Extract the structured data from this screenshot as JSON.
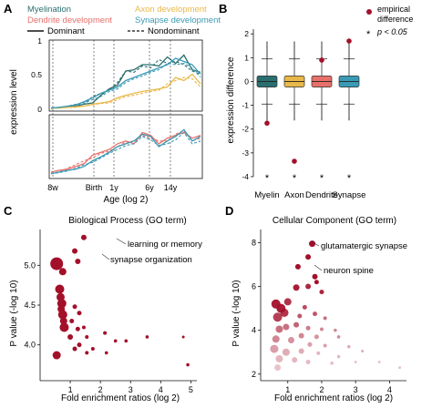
{
  "panels": {
    "A": {
      "label": "A",
      "legend": {
        "series": [
          {
            "name": "Myelination",
            "color": "#2a6f6f"
          },
          {
            "name": "Axon development",
            "color": "#e8b84a"
          },
          {
            "name": "Dendrite development",
            "color": "#e8706a"
          },
          {
            "name": "Synapse development",
            "color": "#3a9ab5"
          }
        ],
        "line_styles": [
          {
            "name": "Dominant",
            "dash": false
          },
          {
            "name": "Nondominant",
            "dash": true
          }
        ]
      },
      "ylabel": "expression level",
      "xlabel": "Age (log 2)",
      "yticks_top": [
        "0",
        "0.5",
        "1"
      ],
      "xticks": [
        "8w",
        "Birth",
        "1y",
        "6y",
        "14y"
      ]
    },
    "B": {
      "label": "B",
      "ylabel": "expression difference",
      "yticks": [
        "-4",
        "-3",
        "-2",
        "-1",
        "0",
        "1",
        "2"
      ],
      "categories": [
        "Myelin",
        "Axon",
        "Dendrite",
        "Synapse"
      ],
      "legend_empirical": "empirical difference",
      "legend_sig_star": "*",
      "legend_sig_text": "p < 0.05",
      "stars": [
        "*",
        "*",
        "*",
        "*"
      ]
    },
    "C": {
      "label": "C",
      "title": "Biological Process (GO term)",
      "xlabel": "Fold enrichment ratios (log 2)",
      "ylabel": "P value (-log 10)",
      "annotations": [
        "learning or memory",
        "synapse organization"
      ]
    },
    "D": {
      "label": "D",
      "title": "Cellular Component (GO term)",
      "xlabel": "Fold enrichment ratios (log 2)",
      "ylabel": "P value (-log 10)",
      "annotations": [
        "glutamatergic synapse",
        "neuron spine"
      ]
    }
  },
  "chart_data": [
    {
      "type": "line",
      "panel": "A-top",
      "x": [
        0,
        1,
        2,
        3,
        4,
        5,
        6,
        7,
        8,
        9,
        10,
        11,
        12,
        13,
        14,
        15,
        16,
        17,
        18
      ],
      "ylim": [
        0,
        1
      ],
      "series": [
        {
          "name": "Myelination",
          "style": "Dominant",
          "values": [
            0.02,
            0.03,
            0.04,
            0.05,
            0.08,
            0.1,
            0.22,
            0.32,
            0.38,
            0.6,
            0.62,
            0.7,
            0.7,
            0.68,
            0.82,
            0.72,
            0.85,
            0.62,
            0.58
          ]
        },
        {
          "name": "Myelination",
          "style": "Nondominant",
          "values": [
            0.01,
            0.03,
            0.04,
            0.06,
            0.08,
            0.2,
            0.25,
            0.3,
            0.42,
            0.6,
            0.58,
            0.68,
            0.65,
            0.78,
            0.72,
            0.75,
            0.7,
            0.6,
            0.55
          ]
        },
        {
          "name": "Axon development",
          "style": "Dominant",
          "values": [
            0.02,
            0.02,
            0.03,
            0.04,
            0.05,
            0.08,
            0.1,
            0.12,
            0.18,
            0.22,
            0.25,
            0.28,
            0.3,
            0.32,
            0.35,
            0.5,
            0.45,
            0.55,
            0.4
          ]
        },
        {
          "name": "Axon development",
          "style": "Nondominant",
          "values": [
            0.01,
            0.02,
            0.03,
            0.03,
            0.05,
            0.07,
            0.09,
            0.1,
            0.15,
            0.2,
            0.22,
            0.25,
            0.28,
            0.3,
            0.4,
            0.45,
            0.5,
            0.48,
            0.35
          ]
        },
        {
          "name": "Synapse development",
          "style": "Dominant",
          "values": [
            0.02,
            0.03,
            0.05,
            0.07,
            0.12,
            0.18,
            0.25,
            0.3,
            0.35,
            0.45,
            0.5,
            0.55,
            0.6,
            0.65,
            0.7,
            0.8,
            0.75,
            0.7,
            0.55
          ]
        },
        {
          "name": "Synapse development",
          "style": "Nondominant",
          "values": [
            0.02,
            0.03,
            0.05,
            0.08,
            0.1,
            0.15,
            0.2,
            0.28,
            0.32,
            0.42,
            0.48,
            0.52,
            0.58,
            0.62,
            0.72,
            0.7,
            0.72,
            0.65,
            0.5
          ]
        }
      ]
    },
    {
      "type": "line",
      "panel": "A-bottom",
      "x": [
        0,
        1,
        2,
        3,
        4,
        5,
        6,
        7,
        8,
        9,
        10,
        11,
        12,
        13,
        14,
        15,
        16,
        17,
        18
      ],
      "ylim": [
        0,
        1
      ],
      "series": [
        {
          "name": "Dendrite development",
          "style": "Dominant",
          "values": [
            0.05,
            0.08,
            0.1,
            0.15,
            0.2,
            0.35,
            0.4,
            0.45,
            0.55,
            0.6,
            0.55,
            0.75,
            0.7,
            0.55,
            0.65,
            0.7,
            0.75,
            0.65,
            0.7
          ]
        },
        {
          "name": "Dendrite development",
          "style": "Nondominant",
          "values": [
            0.03,
            0.05,
            0.12,
            0.18,
            0.25,
            0.3,
            0.38,
            0.42,
            0.5,
            0.58,
            0.6,
            0.7,
            0.65,
            0.6,
            0.6,
            0.72,
            0.78,
            0.6,
            0.65
          ]
        },
        {
          "name": "Synapse development",
          "style": "Dominant",
          "values": [
            0.02,
            0.05,
            0.08,
            0.1,
            0.15,
            0.25,
            0.32,
            0.4,
            0.5,
            0.55,
            0.6,
            0.72,
            0.68,
            0.5,
            0.6,
            0.68,
            0.8,
            0.6,
            0.68
          ]
        },
        {
          "name": "Synapse development",
          "style": "Nondominant",
          "values": [
            0.02,
            0.04,
            0.07,
            0.12,
            0.18,
            0.22,
            0.3,
            0.38,
            0.45,
            0.52,
            0.55,
            0.68,
            0.62,
            0.52,
            0.55,
            0.62,
            0.75,
            0.55,
            0.6
          ]
        }
      ]
    },
    {
      "type": "box",
      "panel": "B",
      "categories": [
        "Myelin",
        "Axon",
        "Dendrite",
        "Synapse"
      ],
      "colors": [
        "#2a6f6f",
        "#e8b84a",
        "#e8706a",
        "#3a9ab5"
      ],
      "ylim": [
        -4,
        2.2
      ],
      "boxes": [
        {
          "q1": -0.12,
          "median": 0.0,
          "q3": 0.12,
          "whisker_low": -0.95,
          "whisker_high": 0.95
        },
        {
          "q1": -0.12,
          "median": 0.0,
          "q3": 0.12,
          "whisker_low": -0.95,
          "whisker_high": 0.95
        },
        {
          "q1": -0.12,
          "median": 0.0,
          "q3": 0.12,
          "whisker_low": -0.95,
          "whisker_high": 0.95
        },
        {
          "q1": -0.12,
          "median": 0.0,
          "q3": 0.12,
          "whisker_low": -0.95,
          "whisker_high": 0.95
        }
      ],
      "empirical": [
        {
          "category": "Myelin",
          "value": -1.75
        },
        {
          "category": "Axon",
          "value": -3.35
        },
        {
          "category": "Dendrite",
          "value": 0.9
        },
        {
          "category": "Synapse",
          "value": 1.7
        }
      ]
    },
    {
      "type": "scatter",
      "panel": "C",
      "xlim": [
        0,
        5.2
      ],
      "ylim": [
        3.55,
        5.45
      ],
      "xticks": [
        1,
        2,
        3,
        4,
        5
      ],
      "yticks": [
        4.0,
        4.5,
        5.0
      ],
      "points": [
        {
          "x": 1.45,
          "y": 5.35,
          "size": 3,
          "alpha": 1.0
        },
        {
          "x": 1.15,
          "y": 5.18,
          "size": 3,
          "alpha": 1.0
        },
        {
          "x": 1.25,
          "y": 5.05,
          "size": 3,
          "alpha": 1.0
        },
        {
          "x": 0.55,
          "y": 5.02,
          "size": 7,
          "alpha": 1.0
        },
        {
          "x": 0.75,
          "y": 4.92,
          "size": 4,
          "alpha": 1.0
        },
        {
          "x": 0.65,
          "y": 4.7,
          "size": 5,
          "alpha": 1.0
        },
        {
          "x": 0.68,
          "y": 4.6,
          "size": 4.5,
          "alpha": 1.0
        },
        {
          "x": 0.72,
          "y": 4.52,
          "size": 5,
          "alpha": 1.0
        },
        {
          "x": 0.7,
          "y": 4.45,
          "size": 4,
          "alpha": 1.0
        },
        {
          "x": 0.75,
          "y": 4.38,
          "size": 5,
          "alpha": 1.0
        },
        {
          "x": 0.78,
          "y": 4.3,
          "size": 4,
          "alpha": 1.0
        },
        {
          "x": 0.8,
          "y": 4.22,
          "size": 5,
          "alpha": 1.0
        },
        {
          "x": 1.15,
          "y": 4.48,
          "size": 2.5,
          "alpha": 1.0
        },
        {
          "x": 1.3,
          "y": 4.4,
          "size": 2.5,
          "alpha": 1.0
        },
        {
          "x": 1.05,
          "y": 4.3,
          "size": 2.5,
          "alpha": 1.0
        },
        {
          "x": 1.25,
          "y": 4.2,
          "size": 2.5,
          "alpha": 1.0
        },
        {
          "x": 1.45,
          "y": 4.22,
          "size": 2,
          "alpha": 1.0
        },
        {
          "x": 1.0,
          "y": 4.1,
          "size": 3,
          "alpha": 1.0
        },
        {
          "x": 1.55,
          "y": 4.1,
          "size": 2,
          "alpha": 1.0
        },
        {
          "x": 2.15,
          "y": 4.15,
          "size": 2,
          "alpha": 1.0
        },
        {
          "x": 2.5,
          "y": 4.05,
          "size": 1.8,
          "alpha": 1.0
        },
        {
          "x": 1.3,
          "y": 4.0,
          "size": 2.5,
          "alpha": 1.0
        },
        {
          "x": 1.15,
          "y": 3.95,
          "size": 2.5,
          "alpha": 1.0
        },
        {
          "x": 0.55,
          "y": 3.87,
          "size": 4.5,
          "alpha": 1.0
        },
        {
          "x": 1.55,
          "y": 3.9,
          "size": 2,
          "alpha": 1.0
        },
        {
          "x": 1.75,
          "y": 3.95,
          "size": 2,
          "alpha": 1.0
        },
        {
          "x": 2.2,
          "y": 3.9,
          "size": 1.8,
          "alpha": 1.0
        },
        {
          "x": 2.85,
          "y": 4.05,
          "size": 1.8,
          "alpha": 1.0
        },
        {
          "x": 3.55,
          "y": 4.1,
          "size": 1.8,
          "alpha": 1.0
        },
        {
          "x": 4.75,
          "y": 4.1,
          "size": 1.5,
          "alpha": 1.0
        },
        {
          "x": 4.9,
          "y": 3.75,
          "size": 1.8,
          "alpha": 1.0
        }
      ]
    },
    {
      "type": "scatter",
      "panel": "D",
      "xlim": [
        0.2,
        4.5
      ],
      "ylim": [
        1.7,
        8.6
      ],
      "xticks": [
        1,
        2,
        3,
        4
      ],
      "yticks": [
        2,
        4,
        6,
        8
      ],
      "points": [
        {
          "x": 1.72,
          "y": 7.95,
          "size": 3.5,
          "alpha": 1.0
        },
        {
          "x": 1.6,
          "y": 7.35,
          "size": 3,
          "alpha": 1.0
        },
        {
          "x": 1.3,
          "y": 6.9,
          "size": 3,
          "alpha": 1.0
        },
        {
          "x": 1.8,
          "y": 6.45,
          "size": 3,
          "alpha": 1.0
        },
        {
          "x": 1.85,
          "y": 6.2,
          "size": 2.5,
          "alpha": 1.0
        },
        {
          "x": 1.25,
          "y": 5.95,
          "size": 3.5,
          "alpha": 0.95
        },
        {
          "x": 1.6,
          "y": 6.0,
          "size": 3,
          "alpha": 0.9
        },
        {
          "x": 2.0,
          "y": 5.75,
          "size": 2.5,
          "alpha": 0.9
        },
        {
          "x": 1.0,
          "y": 5.3,
          "size": 4,
          "alpha": 0.85
        },
        {
          "x": 0.65,
          "y": 5.2,
          "size": 5,
          "alpha": 0.95
        },
        {
          "x": 0.8,
          "y": 5.0,
          "size": 5,
          "alpha": 0.95
        },
        {
          "x": 0.9,
          "y": 4.8,
          "size": 4.5,
          "alpha": 0.85
        },
        {
          "x": 0.7,
          "y": 4.6,
          "size": 5,
          "alpha": 0.8
        },
        {
          "x": 1.5,
          "y": 5.05,
          "size": 2.5,
          "alpha": 0.75
        },
        {
          "x": 1.35,
          "y": 4.65,
          "size": 2.5,
          "alpha": 0.7
        },
        {
          "x": 1.8,
          "y": 4.75,
          "size": 2.5,
          "alpha": 0.7
        },
        {
          "x": 2.1,
          "y": 4.55,
          "size": 2,
          "alpha": 0.6
        },
        {
          "x": 1.25,
          "y": 4.25,
          "size": 3,
          "alpha": 0.65
        },
        {
          "x": 0.95,
          "y": 4.15,
          "size": 3.5,
          "alpha": 0.6
        },
        {
          "x": 0.75,
          "y": 4.05,
          "size": 4,
          "alpha": 0.6
        },
        {
          "x": 1.6,
          "y": 4.1,
          "size": 2.5,
          "alpha": 0.55
        },
        {
          "x": 2.0,
          "y": 4.05,
          "size": 2,
          "alpha": 0.5
        },
        {
          "x": 2.4,
          "y": 4.0,
          "size": 1.8,
          "alpha": 0.5
        },
        {
          "x": 2.5,
          "y": 3.7,
          "size": 1.8,
          "alpha": 0.5
        },
        {
          "x": 1.4,
          "y": 3.75,
          "size": 3,
          "alpha": 0.5
        },
        {
          "x": 1.85,
          "y": 3.7,
          "size": 2.5,
          "alpha": 0.45
        },
        {
          "x": 0.65,
          "y": 3.6,
          "size": 4,
          "alpha": 0.5
        },
        {
          "x": 1.1,
          "y": 3.55,
          "size": 3.5,
          "alpha": 0.45
        },
        {
          "x": 1.65,
          "y": 3.35,
          "size": 2.5,
          "alpha": 0.4
        },
        {
          "x": 2.1,
          "y": 3.3,
          "size": 2,
          "alpha": 0.4
        },
        {
          "x": 2.8,
          "y": 3.25,
          "size": 1.8,
          "alpha": 0.35
        },
        {
          "x": 3.2,
          "y": 3.05,
          "size": 1.5,
          "alpha": 0.35
        },
        {
          "x": 0.6,
          "y": 3.15,
          "size": 4.5,
          "alpha": 0.4
        },
        {
          "x": 0.95,
          "y": 3.0,
          "size": 4,
          "alpha": 0.35
        },
        {
          "x": 1.4,
          "y": 3.05,
          "size": 3,
          "alpha": 0.35
        },
        {
          "x": 1.9,
          "y": 2.95,
          "size": 2,
          "alpha": 0.3
        },
        {
          "x": 2.5,
          "y": 2.8,
          "size": 1.8,
          "alpha": 0.3
        },
        {
          "x": 0.75,
          "y": 2.7,
          "size": 4,
          "alpha": 0.3
        },
        {
          "x": 1.2,
          "y": 2.65,
          "size": 3,
          "alpha": 0.3
        },
        {
          "x": 1.6,
          "y": 2.55,
          "size": 2.5,
          "alpha": 0.28
        },
        {
          "x": 2.3,
          "y": 2.5,
          "size": 1.8,
          "alpha": 0.28
        },
        {
          "x": 3.0,
          "y": 2.55,
          "size": 1.5,
          "alpha": 0.25
        },
        {
          "x": 3.7,
          "y": 2.55,
          "size": 1.5,
          "alpha": 0.25
        },
        {
          "x": 4.3,
          "y": 2.3,
          "size": 1.5,
          "alpha": 0.25
        },
        {
          "x": 0.7,
          "y": 2.3,
          "size": 3.5,
          "alpha": 0.25
        }
      ]
    }
  ]
}
